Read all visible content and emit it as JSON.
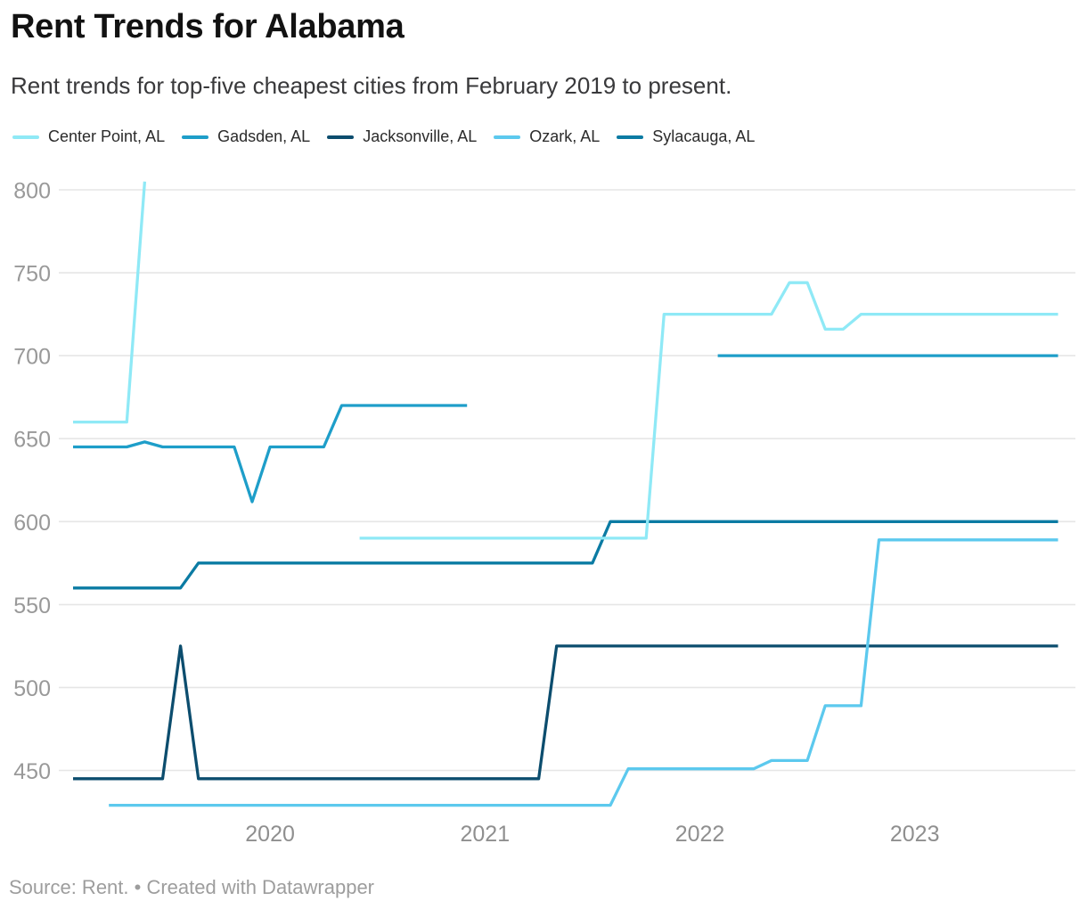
{
  "header": {
    "title": "Rent Trends for Alabama",
    "subtitle": "Rent trends for top-five cheapest cities from February 2019 to present."
  },
  "footer": {
    "text": "Source: Rent. • Created with Datawrapper"
  },
  "chart_data": {
    "type": "line",
    "title": "Rent Trends for Alabama",
    "xlabel": "",
    "ylabel": "",
    "grid": "horizontal",
    "legend_position": "top",
    "ylim": [
      425,
      810
    ],
    "y_ticks": [
      450,
      500,
      550,
      600,
      650,
      700,
      750,
      800
    ],
    "x_ticks": [
      {
        "label": "2020",
        "month": "2020-01"
      },
      {
        "label": "2021",
        "month": "2021-01"
      },
      {
        "label": "2022",
        "month": "2022-01"
      },
      {
        "label": "2023",
        "month": "2023-01"
      }
    ],
    "x": [
      "2019-02",
      "2019-03",
      "2019-04",
      "2019-05",
      "2019-06",
      "2019-07",
      "2019-08",
      "2019-09",
      "2019-10",
      "2019-11",
      "2019-12",
      "2020-01",
      "2020-02",
      "2020-03",
      "2020-04",
      "2020-05",
      "2020-06",
      "2020-07",
      "2020-08",
      "2020-09",
      "2020-10",
      "2020-11",
      "2020-12",
      "2021-01",
      "2021-02",
      "2021-03",
      "2021-04",
      "2021-05",
      "2021-06",
      "2021-07",
      "2021-08",
      "2021-09",
      "2021-10",
      "2021-11",
      "2021-12",
      "2022-01",
      "2022-02",
      "2022-03",
      "2022-04",
      "2022-05",
      "2022-06",
      "2022-07",
      "2022-08",
      "2022-09",
      "2022-10",
      "2022-11",
      "2022-12",
      "2023-01",
      "2023-02",
      "2023-03",
      "2023-04",
      "2023-05",
      "2023-06",
      "2023-07",
      "2023-08",
      "2023-09"
    ],
    "series": [
      {
        "name": "Center Point, AL",
        "color": "#8fe9f6",
        "values": [
          660,
          660,
          660,
          660,
          805,
          null,
          null,
          null,
          null,
          null,
          null,
          null,
          null,
          null,
          null,
          null,
          590,
          590,
          590,
          590,
          590,
          590,
          590,
          590,
          590,
          590,
          590,
          590,
          590,
          590,
          590,
          590,
          590,
          725,
          725,
          725,
          725,
          725,
          725,
          725,
          744,
          744,
          716,
          716,
          725,
          725,
          725,
          725,
          725,
          725,
          725,
          725,
          725,
          725,
          725,
          725
        ]
      },
      {
        "name": "Gadsden, AL",
        "color": "#1e9ec9",
        "values": [
          645,
          645,
          645,
          645,
          648,
          645,
          645,
          645,
          645,
          645,
          612,
          645,
          645,
          645,
          645,
          670,
          670,
          670,
          670,
          670,
          670,
          670,
          670,
          null,
          null,
          null,
          null,
          null,
          null,
          null,
          null,
          null,
          null,
          null,
          null,
          null,
          700,
          700,
          700,
          700,
          700,
          700,
          700,
          700,
          700,
          700,
          700,
          700,
          700,
          700,
          700,
          700,
          700,
          700,
          700,
          700
        ]
      },
      {
        "name": "Jacksonville, AL",
        "color": "#0c4d6e",
        "values": [
          445,
          445,
          445,
          445,
          445,
          445,
          525,
          445,
          445,
          445,
          445,
          445,
          445,
          445,
          445,
          445,
          445,
          445,
          445,
          445,
          445,
          445,
          445,
          445,
          445,
          445,
          445,
          525,
          525,
          525,
          525,
          525,
          525,
          525,
          525,
          525,
          525,
          525,
          525,
          525,
          525,
          525,
          525,
          525,
          525,
          525,
          525,
          525,
          525,
          525,
          525,
          525,
          525,
          525,
          525,
          525
        ]
      },
      {
        "name": "Ozark, AL",
        "color": "#5cc9ee",
        "values": [
          null,
          null,
          429,
          429,
          429,
          429,
          429,
          429,
          429,
          429,
          429,
          429,
          429,
          429,
          429,
          429,
          429,
          429,
          429,
          429,
          429,
          429,
          429,
          429,
          429,
          429,
          429,
          429,
          429,
          429,
          429,
          451,
          451,
          451,
          451,
          451,
          451,
          451,
          451,
          456,
          456,
          456,
          489,
          489,
          489,
          589,
          589,
          589,
          589,
          589,
          589,
          589,
          589,
          589,
          589,
          589
        ]
      },
      {
        "name": "Sylacauga, AL",
        "color": "#0b7ba3",
        "values": [
          560,
          560,
          560,
          560,
          560,
          560,
          560,
          575,
          575,
          575,
          575,
          575,
          575,
          575,
          575,
          575,
          575,
          575,
          575,
          575,
          575,
          575,
          575,
          575,
          575,
          575,
          575,
          575,
          575,
          575,
          600,
          600,
          600,
          600,
          600,
          600,
          600,
          600,
          600,
          600,
          600,
          600,
          600,
          600,
          600,
          600,
          600,
          600,
          600,
          600,
          600,
          600,
          600,
          600,
          600,
          600
        ]
      }
    ],
    "draw_order": [
      1,
      2,
      4,
      3,
      0
    ]
  }
}
